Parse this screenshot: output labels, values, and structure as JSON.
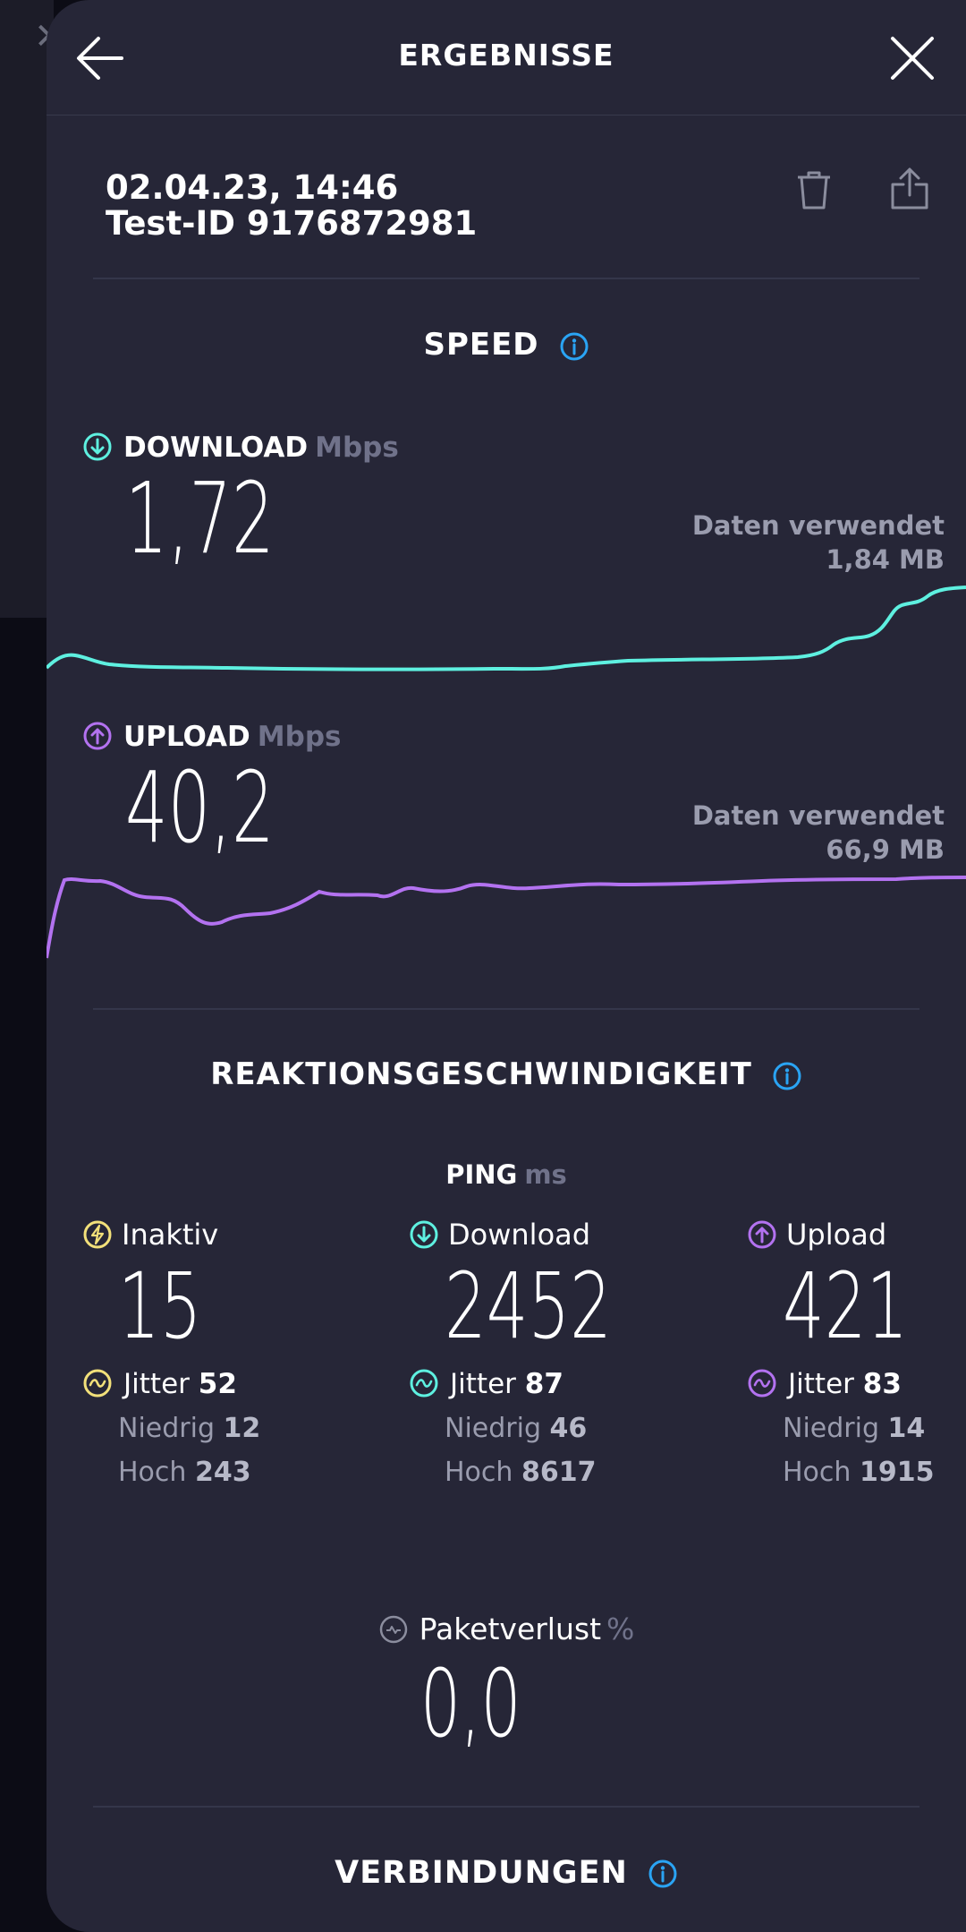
{
  "header": {
    "title": "ERGEBNISSE"
  },
  "test": {
    "datetime": "02.04.23, 14:46",
    "test_id": "Test-ID 9176872981"
  },
  "speed": {
    "title": "SPEED",
    "download": {
      "label": "DOWNLOAD",
      "unit": "Mbps",
      "value": "1,72",
      "data_used_label": "Daten verwendet",
      "data_used_value": "1,84 MB",
      "color": "#5ef0e0"
    },
    "upload": {
      "label": "UPLOAD",
      "unit": "Mbps",
      "value": "40,2",
      "data_used_label": "Daten verwendet",
      "data_used_value": "66,9 MB",
      "color": "#b372f0"
    }
  },
  "responsiveness": {
    "title": "REAKTIONSGESCHWINDIGKEIT",
    "ping_label": "PING",
    "ping_unit": "ms",
    "idle": {
      "label": "Inaktiv",
      "value": "15",
      "jitter_label": "Jitter",
      "jitter": "52",
      "low_label": "Niedrig",
      "low": "12",
      "high_label": "Hoch",
      "high": "243",
      "color": "#f2e07a"
    },
    "download": {
      "label": "Download",
      "value": "2452",
      "jitter_label": "Jitter",
      "jitter": "87",
      "low_label": "Niedrig",
      "low": "46",
      "high_label": "Hoch",
      "high": "8617",
      "color": "#5ef0e0"
    },
    "upload": {
      "label": "Upload",
      "value": "421",
      "jitter_label": "Jitter",
      "jitter": "83",
      "low_label": "Niedrig",
      "low": "14",
      "high_label": "Hoch",
      "high": "1915",
      "color": "#b372f0"
    },
    "packet_loss": {
      "label": "Paketverlust",
      "unit": "%",
      "value": "0,0"
    }
  },
  "connections": {
    "title": "VERBINDUNGEN"
  },
  "icons": {
    "back": "arrow-left-icon",
    "close": "close-icon",
    "trash": "trash-icon",
    "share": "share-icon",
    "info": "info-icon"
  }
}
